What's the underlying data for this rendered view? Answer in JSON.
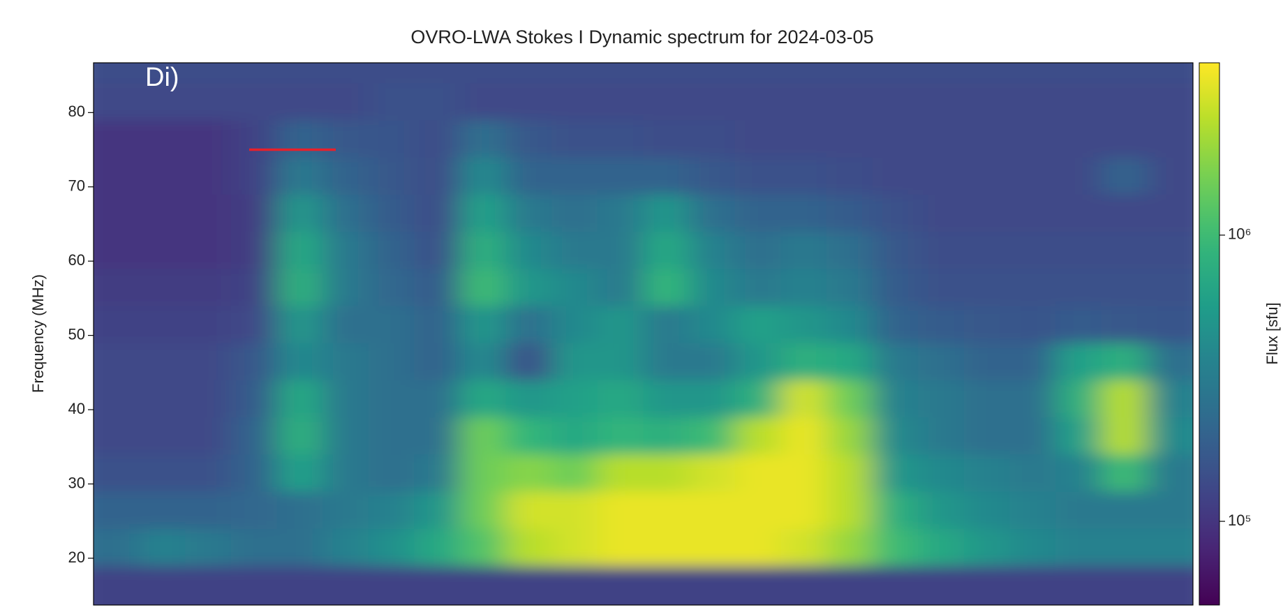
{
  "chart_data": {
    "type": "heatmap",
    "title": "OVRO-LWA Stokes I Dynamic spectrum for 2024-03-05",
    "ylabel": "Frequency (MHz)",
    "ylim": [
      13.7,
      86.7
    ],
    "yticks": [
      20,
      30,
      40,
      50,
      60,
      70,
      80
    ],
    "ybins": [
      13.7,
      19,
      24,
      29,
      34,
      39,
      44,
      49,
      54,
      59,
      64,
      69,
      74,
      79,
      84,
      86.7
    ],
    "colorbar": {
      "label": "Flux [sfu]",
      "log": true,
      "lim": [
        51000,
        4000000
      ],
      "ticks": [
        {
          "value": 100000,
          "label": "10⁵"
        },
        {
          "value": 1000000,
          "label": "10⁶"
        }
      ],
      "colormap": "viridis"
    },
    "annotations": [
      {
        "text": "Di)",
        "color": "#ffffff"
      },
      {
        "y": 75,
        "color": "#e8202a"
      }
    ],
    "z": [
      [
        120000,
        120000,
        120000,
        120000,
        120000,
        120000,
        120000,
        120000,
        120000,
        120000,
        120000,
        120000,
        120000,
        120000,
        120000,
        120000,
        120000,
        120000,
        120000,
        120000,
        120000,
        120000,
        120000,
        120000
      ],
      [
        250000,
        350000,
        300000,
        250000,
        250000,
        350000,
        450000,
        700000,
        1200000,
        2500000,
        3000000,
        3500000,
        3500000,
        3500000,
        3500000,
        3000000,
        2000000,
        1000000,
        700000,
        500000,
        400000,
        350000,
        350000,
        350000
      ],
      [
        200000,
        200000,
        200000,
        220000,
        250000,
        300000,
        350000,
        500000,
        1500000,
        3000000,
        3000000,
        3500000,
        3500000,
        3500000,
        3500000,
        3500000,
        2500000,
        800000,
        500000,
        400000,
        350000,
        300000,
        300000,
        300000
      ],
      [
        150000,
        150000,
        150000,
        200000,
        600000,
        300000,
        250000,
        300000,
        1500000,
        1800000,
        1500000,
        2500000,
        2500000,
        3000000,
        3500000,
        3500000,
        2500000,
        500000,
        400000,
        350000,
        300000,
        350000,
        1000000,
        300000
      ],
      [
        130000,
        130000,
        130000,
        200000,
        800000,
        300000,
        250000,
        250000,
        1500000,
        900000,
        700000,
        900000,
        800000,
        1000000,
        2500000,
        3500000,
        2000000,
        400000,
        300000,
        250000,
        250000,
        600000,
        2500000,
        400000
      ],
      [
        130000,
        130000,
        130000,
        180000,
        700000,
        300000,
        250000,
        250000,
        700000,
        500000,
        600000,
        700000,
        500000,
        500000,
        800000,
        3000000,
        1500000,
        350000,
        300000,
        250000,
        250000,
        800000,
        2500000,
        350000
      ],
      [
        130000,
        130000,
        130000,
        170000,
        400000,
        300000,
        250000,
        200000,
        400000,
        150000,
        500000,
        500000,
        300000,
        300000,
        500000,
        800000,
        700000,
        300000,
        250000,
        200000,
        200000,
        600000,
        800000,
        250000
      ],
      [
        120000,
        120000,
        120000,
        130000,
        500000,
        250000,
        250000,
        200000,
        500000,
        250000,
        400000,
        500000,
        300000,
        400000,
        600000,
        500000,
        400000,
        200000,
        180000,
        170000,
        160000,
        180000,
        170000,
        160000
      ],
      [
        110000,
        110000,
        110000,
        120000,
        800000,
        300000,
        220000,
        180000,
        1000000,
        500000,
        400000,
        300000,
        900000,
        400000,
        300000,
        350000,
        300000,
        180000,
        150000,
        150000,
        150000,
        150000,
        150000,
        150000
      ],
      [
        100000,
        100000,
        100000,
        110000,
        700000,
        300000,
        200000,
        150000,
        800000,
        400000,
        300000,
        300000,
        700000,
        350000,
        250000,
        300000,
        250000,
        170000,
        140000,
        140000,
        140000,
        140000,
        140000,
        140000
      ],
      [
        100000,
        100000,
        100000,
        110000,
        500000,
        250000,
        180000,
        140000,
        600000,
        300000,
        250000,
        300000,
        500000,
        250000,
        200000,
        200000,
        180000,
        150000,
        130000,
        130000,
        130000,
        130000,
        130000,
        130000
      ],
      [
        100000,
        100000,
        100000,
        120000,
        300000,
        200000,
        170000,
        140000,
        400000,
        200000,
        200000,
        200000,
        200000,
        170000,
        150000,
        150000,
        140000,
        130000,
        130000,
        130000,
        130000,
        130000,
        200000,
        130000
      ],
      [
        100000,
        100000,
        100000,
        120000,
        200000,
        170000,
        160000,
        140000,
        250000,
        170000,
        150000,
        150000,
        140000,
        140000,
        130000,
        130000,
        130000,
        130000,
        130000,
        130000,
        130000,
        130000,
        130000,
        130000
      ],
      [
        130000,
        130000,
        130000,
        130000,
        130000,
        130000,
        150000,
        150000,
        130000,
        130000,
        130000,
        130000,
        130000,
        130000,
        130000,
        130000,
        130000,
        130000,
        130000,
        130000,
        130000,
        130000,
        130000,
        130000
      ],
      [
        140000,
        140000,
        140000,
        140000,
        140000,
        140000,
        140000,
        140000,
        140000,
        140000,
        140000,
        140000,
        140000,
        140000,
        140000,
        140000,
        140000,
        140000,
        140000,
        140000,
        140000,
        140000,
        140000,
        140000
      ]
    ]
  }
}
